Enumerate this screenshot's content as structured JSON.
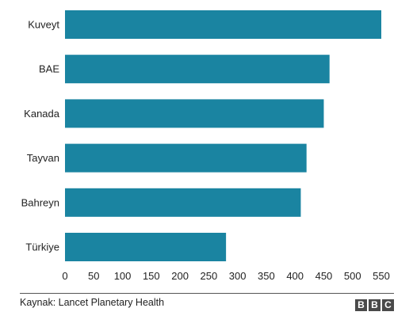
{
  "chart_data": {
    "type": "bar",
    "orientation": "horizontal",
    "categories": [
      "Kuveyt",
      "BAE",
      "Kanada",
      "Tayvan",
      "Bahreyn",
      "Türkiye"
    ],
    "values": [
      550,
      460,
      450,
      420,
      410,
      280
    ],
    "xlim": [
      0,
      550
    ],
    "xticks": [
      "0",
      "50",
      "100",
      "150",
      "200",
      "250",
      "300",
      "350",
      "400",
      "450",
      "500",
      "550"
    ],
    "grid": false,
    "bar_color": "#1a84a1"
  },
  "source_text": "Kaynak: Lancet Planetary Health",
  "logo_letters": [
    "B",
    "B",
    "C"
  ]
}
